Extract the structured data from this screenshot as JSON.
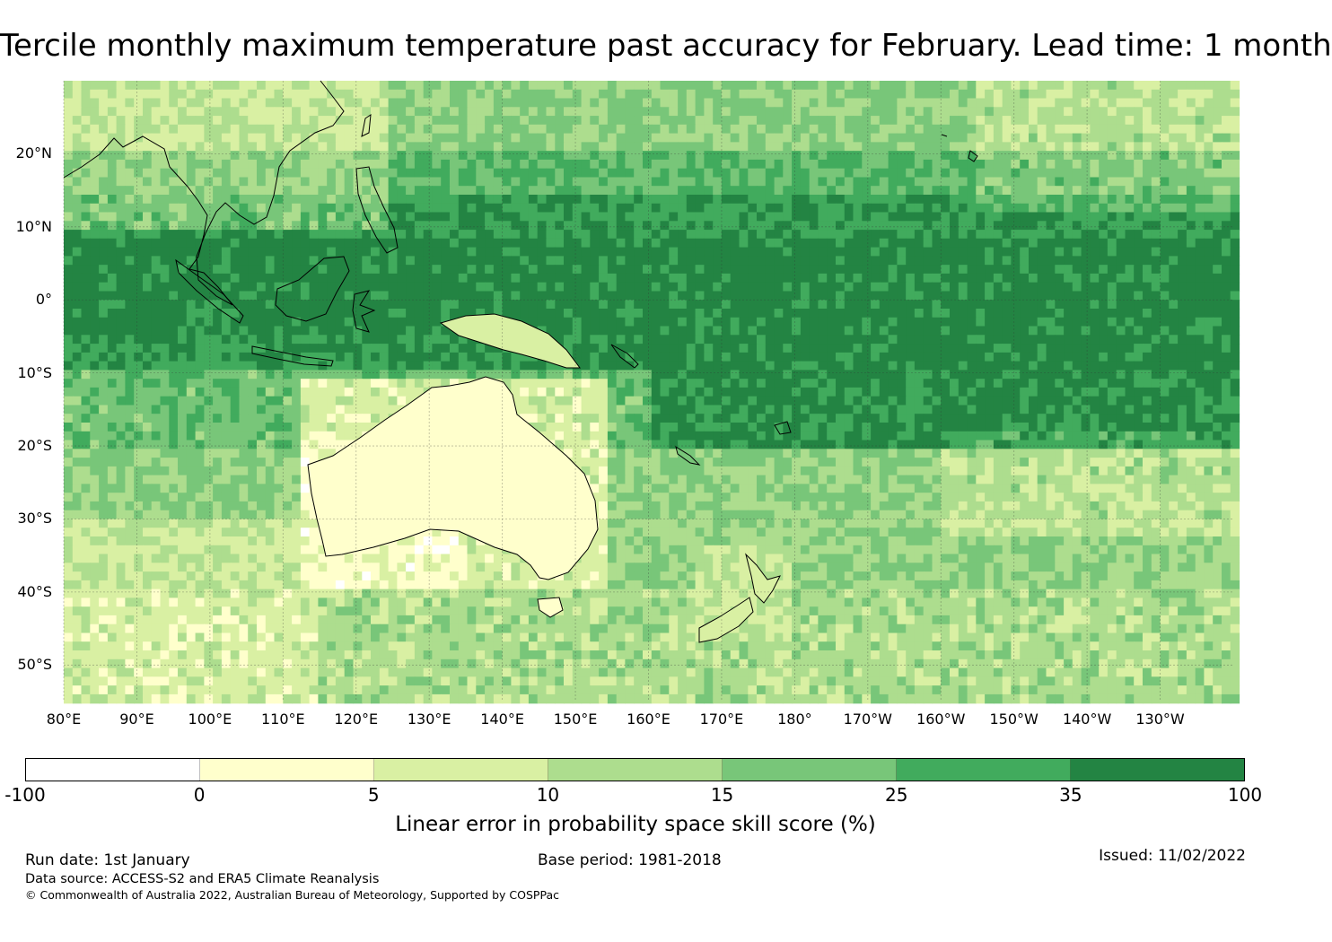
{
  "title": "Tercile monthly maximum temperature past accuracy for February. Lead time: 1 month",
  "map": {
    "lon_range": [
      80,
      240
    ],
    "lat_range": [
      -55,
      30
    ],
    "lat_labels": [
      "20°N",
      "10°N",
      "0°",
      "10°S",
      "20°S",
      "30°S",
      "40°S",
      "50°S"
    ],
    "lat_values": [
      20,
      10,
      0,
      -10,
      -20,
      -30,
      -40,
      -50
    ],
    "lon_labels": [
      "80°E",
      "90°E",
      "100°E",
      "110°E",
      "120°E",
      "130°E",
      "140°E",
      "150°E",
      "160°E",
      "170°E",
      "180°",
      "170°W",
      "160°W",
      "150°W",
      "140°W",
      "130°W"
    ],
    "lon_values": [
      80,
      90,
      100,
      110,
      120,
      130,
      140,
      150,
      160,
      170,
      180,
      190,
      200,
      210,
      220,
      230
    ]
  },
  "legend": {
    "colors": [
      "#ffffff",
      "#ffffcc",
      "#d9f0a3",
      "#addd8e",
      "#78c679",
      "#41ab5d",
      "#238443"
    ],
    "ticks": [
      "-100",
      "0",
      "5",
      "10",
      "15",
      "25",
      "35",
      "100"
    ],
    "label": "Linear error in probability space skill score (%)"
  },
  "footer": {
    "run_date": "Run date: 1st January",
    "base_period": "Base period: 1981-2018",
    "issued": "Issued: 11/02/2022",
    "data_source": "Data source: ACCESS-S2 and ERA5 Climate Reanalysis",
    "copyright": "© Commonwealth of Australia 2022, Australian Bureau of Meteorology, Supported by COSPPac"
  }
}
